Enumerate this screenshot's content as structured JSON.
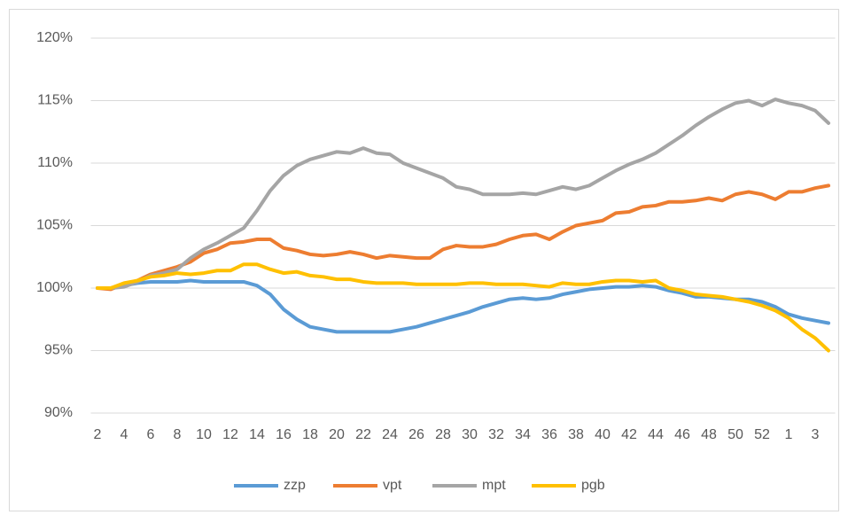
{
  "chart_data": {
    "type": "line",
    "categories": [
      "2",
      null,
      "4",
      null,
      "6",
      null,
      "8",
      null,
      "10",
      null,
      "12",
      null,
      "14",
      null,
      "16",
      null,
      "18",
      null,
      "20",
      null,
      "22",
      null,
      "24",
      null,
      "26",
      null,
      "28",
      null,
      "30",
      null,
      "32",
      null,
      "34",
      null,
      "36",
      null,
      "38",
      null,
      "40",
      null,
      "42",
      null,
      "44",
      null,
      "46",
      null,
      "48",
      null,
      "50",
      null,
      "52",
      null,
      "1",
      null,
      "3",
      null
    ],
    "series": [
      {
        "name": "zzp",
        "color": "#5b9bd5",
        "values": [
          100,
          100,
          100.2,
          100.4,
          100.5,
          100.5,
          100.5,
          100.6,
          100.5,
          100.5,
          100.5,
          100.5,
          100.2,
          99.5,
          98.3,
          97.5,
          96.9,
          96.7,
          96.5,
          96.5,
          96.5,
          96.5,
          96.5,
          96.7,
          96.9,
          97.2,
          97.5,
          97.8,
          98.1,
          98.5,
          98.8,
          99.1,
          99.2,
          99.1,
          99.2,
          99.5,
          99.7,
          99.9,
          100,
          100.1,
          100.1,
          100.2,
          100.1,
          99.8,
          99.6,
          99.3,
          99.3,
          99.2,
          99.1,
          99.1,
          98.9,
          98.5,
          97.9,
          97.6,
          97.4,
          97.2
        ]
      },
      {
        "name": "vpt",
        "color": "#ed7d31",
        "values": [
          100,
          99.9,
          100.3,
          100.6,
          101.1,
          101.4,
          101.7,
          102.1,
          102.8,
          103.1,
          103.6,
          103.7,
          103.9,
          103.9,
          103.2,
          103.0,
          102.7,
          102.6,
          102.7,
          102.9,
          102.7,
          102.4,
          102.6,
          102.5,
          102.4,
          102.4,
          103.1,
          103.4,
          103.3,
          103.3,
          103.5,
          103.9,
          104.2,
          104.3,
          103.9,
          104.5,
          105.0,
          105.2,
          105.4,
          106.0,
          106.1,
          106.5,
          106.6,
          106.9,
          106.9,
          107.0,
          107.2,
          107.0,
          107.5,
          107.7,
          107.5,
          107.1,
          107.7,
          107.7,
          108.0,
          108.2
        ]
      },
      {
        "name": "mpt",
        "color": "#a5a5a5",
        "values": [
          100,
          100,
          100.1,
          100.5,
          101.0,
          101.2,
          101.5,
          102.4,
          103.1,
          103.6,
          104.2,
          104.8,
          106.2,
          107.8,
          109.0,
          109.8,
          110.3,
          110.6,
          110.9,
          110.8,
          111.2,
          110.8,
          110.7,
          110.0,
          109.6,
          109.2,
          108.8,
          108.1,
          107.9,
          107.5,
          107.5,
          107.5,
          107.6,
          107.5,
          107.8,
          108.1,
          107.9,
          108.2,
          108.8,
          109.4,
          109.9,
          110.3,
          110.8,
          111.5,
          112.2,
          113.0,
          113.7,
          114.3,
          114.8,
          115.0,
          114.6,
          115.1,
          114.8,
          114.6,
          114.2,
          113.2
        ]
      },
      {
        "name": "pgb",
        "color": "#ffc000",
        "values": [
          100,
          100,
          100.4,
          100.6,
          100.9,
          101.0,
          101.2,
          101.1,
          101.2,
          101.4,
          101.4,
          101.9,
          101.9,
          101.5,
          101.2,
          101.3,
          101.0,
          100.9,
          100.7,
          100.7,
          100.5,
          100.4,
          100.4,
          100.4,
          100.3,
          100.3,
          100.3,
          100.3,
          100.4,
          100.4,
          100.3,
          100.3,
          100.3,
          100.2,
          100.1,
          100.4,
          100.3,
          100.3,
          100.5,
          100.6,
          100.6,
          100.5,
          100.6,
          100.0,
          99.8,
          99.5,
          99.4,
          99.3,
          99.1,
          98.9,
          98.6,
          98.2,
          97.6,
          96.7,
          96.0,
          95.0
        ]
      }
    ],
    "ylim": [
      90,
      120
    ],
    "yticks": [
      {
        "value": 90,
        "label": "90%"
      },
      {
        "value": 95,
        "label": "95%"
      },
      {
        "value": 100,
        "label": "100%"
      },
      {
        "value": 105,
        "label": "105%"
      },
      {
        "value": 110,
        "label": "110%"
      },
      {
        "value": 115,
        "label": "115%"
      },
      {
        "value": 120,
        "label": "120%"
      }
    ],
    "grid": true,
    "legend": "bottom"
  }
}
